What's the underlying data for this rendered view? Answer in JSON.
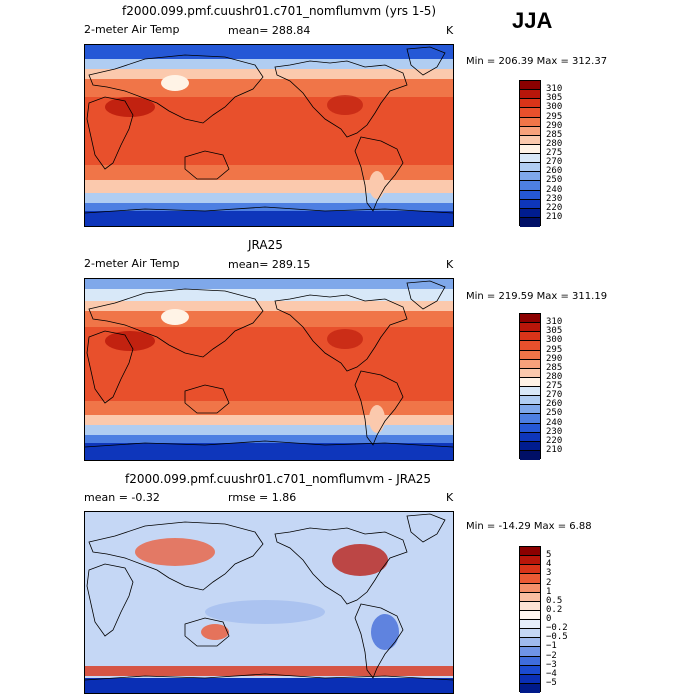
{
  "season": "JJA",
  "panels": [
    {
      "title": "f2000.099.pmf.cuushr01.c701_nomflumvm (yrs 1-5)",
      "left_label": "2-meter Air Temp",
      "stat_label": "mean= 288.84",
      "unit": "K",
      "minmax": "Min = 206.39 Max = 312.37",
      "levels": [
        "310",
        "305",
        "300",
        "295",
        "290",
        "285",
        "280",
        "275",
        "270",
        "260",
        "250",
        "240",
        "230",
        "220",
        "210"
      ],
      "colors": [
        "#8b0000",
        "#b8160a",
        "#d93419",
        "#e8502c",
        "#f07548",
        "#f7a17b",
        "#fbc9ad",
        "#fff3e6",
        "#d8e8f8",
        "#b0cdf2",
        "#7fa8ea",
        "#4d7fe2",
        "#2558d6",
        "#0e36bb",
        "#001c8f",
        "#000f66"
      ]
    },
    {
      "title": "JRA25",
      "left_label": "2-meter Air Temp",
      "stat_label": "mean= 289.15",
      "unit": "K",
      "minmax": "Min = 219.59 Max = 311.19",
      "levels": [
        "310",
        "305",
        "300",
        "295",
        "290",
        "285",
        "280",
        "275",
        "270",
        "260",
        "250",
        "240",
        "230",
        "220",
        "210"
      ],
      "colors": [
        "#8b0000",
        "#b8160a",
        "#d93419",
        "#e8502c",
        "#f07548",
        "#f7a17b",
        "#fbc9ad",
        "#fff3e6",
        "#d8e8f8",
        "#b0cdf2",
        "#7fa8ea",
        "#4d7fe2",
        "#2558d6",
        "#0e36bb",
        "#001c8f",
        "#000f66"
      ]
    },
    {
      "title": "f2000.099.pmf.cuushr01.c701_nomflumvm - JRA25",
      "left_label": "mean =   -0.32",
      "stat_label": "rmse =    1.86",
      "unit": "K",
      "minmax": "Min = -14.29 Max =    6.88",
      "levels": [
        "5",
        "4",
        "3",
        "2",
        "1",
        "0.5",
        "0.2",
        "0",
        "−0.2",
        "−0.5",
        "−1",
        "−2",
        "−3",
        "−4",
        "−5"
      ],
      "colors": [
        "#8b0000",
        "#b8160a",
        "#d93419",
        "#ec5a34",
        "#f5906a",
        "#fbbfa2",
        "#fde3d4",
        "#fff7f2",
        "#e6eefb",
        "#c5d7f5",
        "#9fbaee",
        "#6f94e6",
        "#3f6ddc",
        "#1b4bd0",
        "#0a2fb5",
        "#001a8a"
      ]
    }
  ],
  "chart_data": [
    {
      "type": "heatmap",
      "title": "f2000.099.pmf.cuushr01.c701_nomflumvm (yrs 1-5)",
      "variable": "2-meter Air Temp",
      "units": "K",
      "mean": 288.84,
      "min": 206.39,
      "max": 312.37,
      "contour_levels": [
        210,
        220,
        230,
        240,
        250,
        260,
        270,
        275,
        280,
        285,
        290,
        295,
        300,
        305,
        310
      ],
      "map": "global lat-lon"
    },
    {
      "type": "heatmap",
      "title": "JRA25",
      "variable": "2-meter Air Temp",
      "units": "K",
      "mean": 289.15,
      "min": 219.59,
      "max": 311.19,
      "contour_levels": [
        210,
        220,
        230,
        240,
        250,
        260,
        270,
        275,
        280,
        285,
        290,
        295,
        300,
        305,
        310
      ],
      "map": "global lat-lon"
    },
    {
      "type": "heatmap",
      "title": "f2000.099.pmf.cuushr01.c701_nomflumvm - JRA25",
      "units": "K",
      "mean": -0.32,
      "rmse": 1.86,
      "min": -14.29,
      "max": 6.88,
      "contour_levels": [
        -5,
        -4,
        -3,
        -2,
        -1,
        -0.5,
        -0.2,
        0,
        0.2,
        0.5,
        1,
        2,
        3,
        4,
        5
      ],
      "map": "global lat-lon"
    }
  ]
}
